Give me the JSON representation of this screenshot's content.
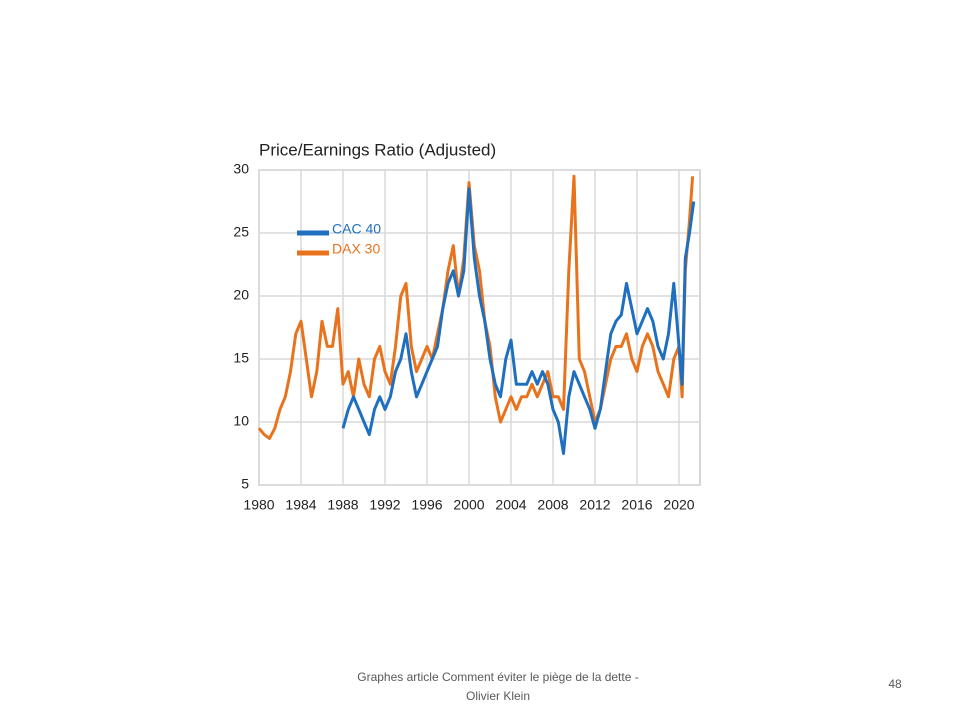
{
  "chart_data": {
    "type": "line",
    "title": "Price/Earnings Ratio (Adjusted)",
    "xlim": [
      1980,
      2022
    ],
    "xticks": [
      1980,
      1984,
      1988,
      1992,
      1996,
      2000,
      2004,
      2008,
      2012,
      2016,
      2020
    ],
    "ylim": [
      5,
      30
    ],
    "yticks": [
      5,
      10,
      15,
      20,
      25,
      30
    ],
    "grid": true,
    "legend": "upper left",
    "series": [
      {
        "name": "CAC 40",
        "color": "#1f6fc0",
        "x": [
          1988,
          1988.5,
          1989,
          1989.5,
          1990,
          1990.5,
          1991,
          1991.5,
          1992,
          1992.5,
          1993,
          1993.5,
          1994,
          1994.5,
          1995,
          1995.5,
          1996,
          1996.5,
          1997,
          1997.5,
          1998,
          1998.5,
          1999,
          1999.5,
          2000,
          2000.5,
          2001,
          2001.5,
          2002,
          2002.5,
          2003,
          2003.5,
          2004,
          2004.5,
          2005,
          2005.5,
          2006,
          2006.5,
          2007,
          2007.5,
          2008,
          2008.5,
          2009,
          2009.5,
          2010,
          2010.5,
          2011,
          2011.5,
          2012,
          2012.5,
          2013,
          2013.5,
          2014,
          2014.5,
          2015,
          2015.5,
          2016,
          2016.5,
          2017,
          2017.5,
          2018,
          2018.5,
          2019,
          2019.5,
          2020,
          2020.3,
          2020.6,
          2021,
          2021.4
        ],
        "values": [
          9.5,
          11,
          12,
          11,
          10,
          9,
          11,
          12,
          11,
          12,
          14,
          15,
          17,
          14,
          12,
          13,
          14,
          15,
          16,
          19,
          21,
          22,
          20,
          22,
          28.5,
          23,
          20,
          18,
          15,
          13,
          12,
          15,
          16.5,
          13,
          13,
          13,
          14,
          13,
          14,
          13,
          11,
          10,
          7.5,
          12,
          14,
          13,
          12,
          11,
          9.5,
          11,
          14,
          17,
          18,
          18.5,
          21,
          19,
          17,
          18,
          19,
          18,
          16,
          15,
          17,
          21,
          16,
          13,
          23,
          25,
          27.5
        ]
      },
      {
        "name": "DAX 30",
        "color": "#e8731c",
        "x": [
          1980,
          1980.5,
          1981,
          1981.5,
          1982,
          1982.5,
          1983,
          1983.5,
          1984,
          1984.5,
          1985,
          1985.5,
          1986,
          1986.5,
          1987,
          1987.5,
          1988,
          1988.5,
          1989,
          1989.5,
          1990,
          1990.5,
          1991,
          1991.5,
          1992,
          1992.5,
          1993,
          1993.5,
          1994,
          1994.5,
          1995,
          1995.5,
          1996,
          1996.5,
          1997,
          1997.5,
          1998,
          1998.5,
          1999,
          1999.5,
          2000,
          2000.5,
          2001,
          2001.5,
          2002,
          2002.5,
          2003,
          2003.5,
          2004,
          2004.5,
          2005,
          2005.5,
          2006,
          2006.5,
          2007,
          2007.5,
          2008,
          2008.5,
          2009,
          2009.5,
          2010,
          2010.5,
          2011,
          2011.5,
          2012,
          2012.5,
          2013,
          2013.5,
          2014,
          2014.5,
          2015,
          2015.5,
          2016,
          2016.5,
          2017,
          2017.5,
          2018,
          2018.5,
          2019,
          2019.5,
          2020,
          2020.3,
          2020.6,
          2021,
          2021.3
        ],
        "values": [
          9.5,
          9,
          8.7,
          9.5,
          11,
          12,
          14,
          17,
          18,
          15,
          12,
          14,
          18,
          16,
          16,
          19,
          13,
          14,
          12,
          15,
          13,
          12,
          15,
          16,
          14,
          13,
          16,
          20,
          21,
          16,
          14,
          15,
          16,
          15,
          17,
          19,
          22,
          24,
          20,
          23,
          29,
          24,
          22,
          18,
          16,
          12,
          10,
          11,
          12,
          11,
          12,
          12,
          13,
          12,
          13,
          14,
          12,
          12,
          11,
          22,
          29.5,
          15,
          14,
          12,
          10,
          11,
          13,
          15,
          16,
          16,
          17,
          15,
          14,
          16,
          17,
          16,
          14,
          13,
          12,
          15,
          16,
          12,
          22,
          26,
          29.5
        ]
      }
    ]
  },
  "footer": {
    "caption": "Graphes article Comment  éviter le piège de la dette - Olivier Klein",
    "page_number": "48"
  }
}
